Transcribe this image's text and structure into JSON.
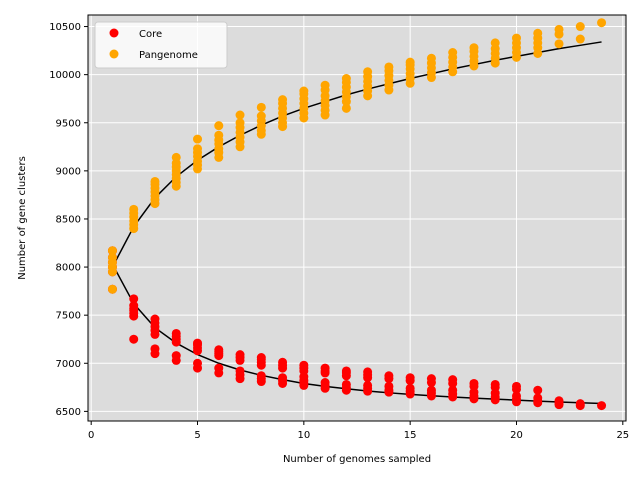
{
  "chart_data": {
    "type": "scatter",
    "title": "",
    "xlabel": "Number of genomes sampled",
    "ylabel": "Number of gene clusters",
    "xlim": [
      -0.15,
      25.15
    ],
    "ylim": [
      6400,
      10620
    ],
    "x_ticks": [
      0,
      5,
      10,
      15,
      20,
      25
    ],
    "y_ticks": [
      6500,
      7000,
      7500,
      8000,
      8500,
      9000,
      9500,
      10000,
      10500
    ],
    "grid": true,
    "background": "#dcdcdc",
    "legend_position": "top-left",
    "series": [
      {
        "name": "Core",
        "color": "#ff0000",
        "points": [
          [
            1,
            7770
          ],
          [
            1,
            7950
          ],
          [
            1,
            8000
          ],
          [
            1,
            8050
          ],
          [
            1,
            8100
          ],
          [
            1,
            8170
          ],
          [
            2,
            7250
          ],
          [
            2,
            7490
          ],
          [
            2,
            7520
          ],
          [
            2,
            7550
          ],
          [
            2,
            7570
          ],
          [
            2,
            7600
          ],
          [
            2,
            7670
          ],
          [
            3,
            7100
          ],
          [
            3,
            7150
          ],
          [
            3,
            7300
          ],
          [
            3,
            7340
          ],
          [
            3,
            7380
          ],
          [
            3,
            7420
          ],
          [
            3,
            7460
          ],
          [
            4,
            7030
          ],
          [
            4,
            7080
          ],
          [
            4,
            7220
          ],
          [
            4,
            7250
          ],
          [
            4,
            7280
          ],
          [
            4,
            7310
          ],
          [
            5,
            6950
          ],
          [
            5,
            7000
          ],
          [
            5,
            7130
          ],
          [
            5,
            7160
          ],
          [
            5,
            7190
          ],
          [
            5,
            7210
          ],
          [
            6,
            6900
          ],
          [
            6,
            6950
          ],
          [
            6,
            7080
          ],
          [
            6,
            7100
          ],
          [
            6,
            7120
          ],
          [
            6,
            7140
          ],
          [
            7,
            6840
          ],
          [
            7,
            6880
          ],
          [
            7,
            6920
          ],
          [
            7,
            7030
          ],
          [
            7,
            7060
          ],
          [
            7,
            7090
          ],
          [
            8,
            6810
          ],
          [
            8,
            6840
          ],
          [
            8,
            6870
          ],
          [
            8,
            6980
          ],
          [
            8,
            7010
          ],
          [
            8,
            7040
          ],
          [
            8,
            7060
          ],
          [
            9,
            6790
          ],
          [
            9,
            6820
          ],
          [
            9,
            6850
          ],
          [
            9,
            6950
          ],
          [
            9,
            6980
          ],
          [
            9,
            7010
          ],
          [
            10,
            6770
          ],
          [
            10,
            6790
          ],
          [
            10,
            6820
          ],
          [
            10,
            6860
          ],
          [
            10,
            6920
          ],
          [
            10,
            6950
          ],
          [
            10,
            6980
          ],
          [
            11,
            6740
          ],
          [
            11,
            6770
          ],
          [
            11,
            6800
          ],
          [
            11,
            6900
          ],
          [
            11,
            6920
          ],
          [
            11,
            6950
          ],
          [
            12,
            6720
          ],
          [
            12,
            6750
          ],
          [
            12,
            6780
          ],
          [
            12,
            6870
          ],
          [
            12,
            6900
          ],
          [
            12,
            6920
          ],
          [
            13,
            6710
          ],
          [
            13,
            6740
          ],
          [
            13,
            6770
          ],
          [
            13,
            6850
          ],
          [
            13,
            6880
          ],
          [
            13,
            6910
          ],
          [
            14,
            6700
          ],
          [
            14,
            6720
          ],
          [
            14,
            6760
          ],
          [
            14,
            6840
          ],
          [
            14,
            6870
          ],
          [
            15,
            6680
          ],
          [
            15,
            6710
          ],
          [
            15,
            6740
          ],
          [
            15,
            6820
          ],
          [
            15,
            6850
          ],
          [
            16,
            6660
          ],
          [
            16,
            6690
          ],
          [
            16,
            6720
          ],
          [
            16,
            6800
          ],
          [
            16,
            6840
          ],
          [
            17,
            6650
          ],
          [
            17,
            6680
          ],
          [
            17,
            6720
          ],
          [
            17,
            6790
          ],
          [
            17,
            6830
          ],
          [
            18,
            6630
          ],
          [
            18,
            6660
          ],
          [
            18,
            6700
          ],
          [
            18,
            6760
          ],
          [
            18,
            6790
          ],
          [
            19,
            6620
          ],
          [
            19,
            6650
          ],
          [
            19,
            6690
          ],
          [
            19,
            6750
          ],
          [
            19,
            6780
          ],
          [
            20,
            6600
          ],
          [
            20,
            6630
          ],
          [
            20,
            6660
          ],
          [
            20,
            6730
          ],
          [
            20,
            6760
          ],
          [
            21,
            6590
          ],
          [
            21,
            6610
          ],
          [
            21,
            6640
          ],
          [
            21,
            6720
          ],
          [
            22,
            6570
          ],
          [
            22,
            6590
          ],
          [
            22,
            6610
          ],
          [
            23,
            6560
          ],
          [
            23,
            6580
          ],
          [
            24,
            6560
          ]
        ]
      },
      {
        "name": "Pangenome",
        "color": "#ffa500",
        "points": [
          [
            1,
            7770
          ],
          [
            1,
            7950
          ],
          [
            1,
            8000
          ],
          [
            1,
            8050
          ],
          [
            1,
            8100
          ],
          [
            1,
            8170
          ],
          [
            2,
            8400
          ],
          [
            2,
            8440
          ],
          [
            2,
            8480
          ],
          [
            2,
            8520
          ],
          [
            2,
            8560
          ],
          [
            2,
            8600
          ],
          [
            3,
            8660
          ],
          [
            3,
            8700
          ],
          [
            3,
            8740
          ],
          [
            3,
            8780
          ],
          [
            3,
            8820
          ],
          [
            3,
            8860
          ],
          [
            3,
            8890
          ],
          [
            4,
            8840
          ],
          [
            4,
            8880
          ],
          [
            4,
            8920
          ],
          [
            4,
            8960
          ],
          [
            4,
            9000
          ],
          [
            4,
            9040
          ],
          [
            4,
            9080
          ],
          [
            4,
            9140
          ],
          [
            5,
            9020
          ],
          [
            5,
            9060
          ],
          [
            5,
            9100
          ],
          [
            5,
            9150
          ],
          [
            5,
            9190
          ],
          [
            5,
            9230
          ],
          [
            5,
            9330
          ],
          [
            6,
            9140
          ],
          [
            6,
            9190
          ],
          [
            6,
            9230
          ],
          [
            6,
            9280
          ],
          [
            6,
            9320
          ],
          [
            6,
            9370
          ],
          [
            6,
            9470
          ],
          [
            7,
            9250
          ],
          [
            7,
            9300
          ],
          [
            7,
            9350
          ],
          [
            7,
            9400
          ],
          [
            7,
            9450
          ],
          [
            7,
            9500
          ],
          [
            7,
            9580
          ],
          [
            8,
            9380
          ],
          [
            8,
            9420
          ],
          [
            8,
            9470
          ],
          [
            8,
            9520
          ],
          [
            8,
            9570
          ],
          [
            8,
            9660
          ],
          [
            9,
            9460
          ],
          [
            9,
            9500
          ],
          [
            9,
            9550
          ],
          [
            9,
            9600
          ],
          [
            9,
            9650
          ],
          [
            9,
            9700
          ],
          [
            9,
            9740
          ],
          [
            10,
            9550
          ],
          [
            10,
            9600
          ],
          [
            10,
            9650
          ],
          [
            10,
            9700
          ],
          [
            10,
            9750
          ],
          [
            10,
            9800
          ],
          [
            10,
            9830
          ],
          [
            11,
            9580
          ],
          [
            11,
            9630
          ],
          [
            11,
            9680
          ],
          [
            11,
            9730
          ],
          [
            11,
            9780
          ],
          [
            11,
            9840
          ],
          [
            11,
            9890
          ],
          [
            12,
            9650
          ],
          [
            12,
            9720
          ],
          [
            12,
            9770
          ],
          [
            12,
            9820
          ],
          [
            12,
            9870
          ],
          [
            12,
            9920
          ],
          [
            12,
            9960
          ],
          [
            13,
            9780
          ],
          [
            13,
            9830
          ],
          [
            13,
            9880
          ],
          [
            13,
            9930
          ],
          [
            13,
            9980
          ],
          [
            13,
            10030
          ],
          [
            14,
            9840
          ],
          [
            14,
            9890
          ],
          [
            14,
            9940
          ],
          [
            14,
            9990
          ],
          [
            14,
            10040
          ],
          [
            14,
            10080
          ],
          [
            15,
            9910
          ],
          [
            15,
            9960
          ],
          [
            15,
            10010
          ],
          [
            15,
            10060
          ],
          [
            15,
            10100
          ],
          [
            15,
            10130
          ],
          [
            16,
            9970
          ],
          [
            16,
            10020
          ],
          [
            16,
            10070
          ],
          [
            16,
            10120
          ],
          [
            16,
            10170
          ],
          [
            17,
            10030
          ],
          [
            17,
            10080
          ],
          [
            17,
            10130
          ],
          [
            17,
            10180
          ],
          [
            17,
            10230
          ],
          [
            18,
            10090
          ],
          [
            18,
            10140
          ],
          [
            18,
            10190
          ],
          [
            18,
            10240
          ],
          [
            18,
            10280
          ],
          [
            19,
            10120
          ],
          [
            19,
            10170
          ],
          [
            19,
            10220
          ],
          [
            19,
            10270
          ],
          [
            19,
            10330
          ],
          [
            20,
            10180
          ],
          [
            20,
            10230
          ],
          [
            20,
            10280
          ],
          [
            20,
            10330
          ],
          [
            20,
            10380
          ],
          [
            21,
            10220
          ],
          [
            21,
            10280
          ],
          [
            21,
            10330
          ],
          [
            21,
            10380
          ],
          [
            21,
            10430
          ],
          [
            22,
            10320
          ],
          [
            22,
            10420
          ],
          [
            22,
            10470
          ],
          [
            23,
            10370
          ],
          [
            23,
            10500
          ],
          [
            24,
            10540
          ]
        ]
      }
    ],
    "fit_lines": [
      {
        "color": "#000000",
        "points": [
          [
            1,
            8030
          ],
          [
            2,
            7620
          ],
          [
            3,
            7370
          ],
          [
            4,
            7210
          ],
          [
            5,
            7090
          ],
          [
            6,
            7000
          ],
          [
            7,
            6930
          ],
          [
            8,
            6875
          ],
          [
            9,
            6830
          ],
          [
            10,
            6790
          ],
          [
            11,
            6760
          ],
          [
            12,
            6735
          ],
          [
            13,
            6712
          ],
          [
            14,
            6693
          ],
          [
            15,
            6677
          ],
          [
            16,
            6663
          ],
          [
            17,
            6650
          ],
          [
            18,
            6638
          ],
          [
            19,
            6627
          ],
          [
            20,
            6617
          ],
          [
            21,
            6607
          ],
          [
            22,
            6598
          ],
          [
            23,
            6590
          ],
          [
            24,
            6582
          ]
        ]
      },
      {
        "color": "#000000",
        "points": [
          [
            1,
            8000
          ],
          [
            2,
            8420
          ],
          [
            3,
            8720
          ],
          [
            4,
            8940
          ],
          [
            5,
            9110
          ],
          [
            6,
            9250
          ],
          [
            7,
            9370
          ],
          [
            8,
            9475
          ],
          [
            9,
            9570
          ],
          [
            10,
            9650
          ],
          [
            11,
            9720
          ],
          [
            12,
            9790
          ],
          [
            13,
            9850
          ],
          [
            14,
            9905
          ],
          [
            15,
            9960
          ],
          [
            16,
            10010
          ],
          [
            17,
            10060
          ],
          [
            18,
            10105
          ],
          [
            19,
            10150
          ],
          [
            20,
            10190
          ],
          [
            21,
            10230
          ],
          [
            22,
            10270
          ],
          [
            23,
            10305
          ],
          [
            24,
            10340
          ]
        ]
      }
    ]
  }
}
